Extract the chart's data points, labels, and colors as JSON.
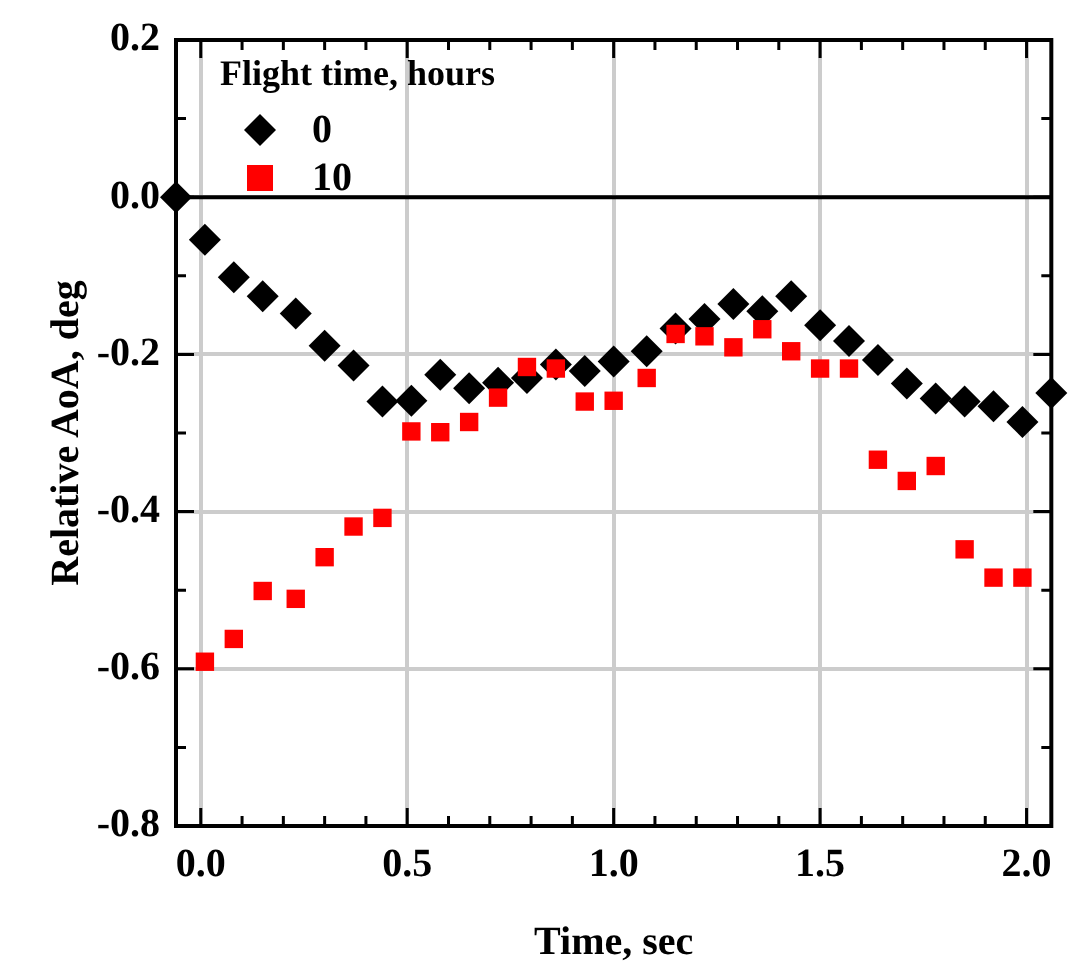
{
  "chart_data": {
    "type": "scatter",
    "xlabel": "Time, sec",
    "ylabel": "Relative AoA, deg",
    "legend_title": "Flight time, hours",
    "legend": "top left",
    "grid": true,
    "x": [
      -0.06,
      0.01,
      0.08,
      0.15,
      0.23,
      0.3,
      0.37,
      0.44,
      0.51,
      0.58,
      0.65,
      0.72,
      0.79,
      0.86,
      0.93,
      1.0,
      1.08,
      1.15,
      1.22,
      1.29,
      1.36,
      1.43,
      1.5,
      1.57,
      1.64,
      1.71,
      1.78,
      1.85,
      1.92,
      1.99,
      2.06
    ],
    "series": [
      {
        "name": "0",
        "color": "#000000",
        "marker": "diamond",
        "values": [
          0,
          -0.054,
          -0.102,
          -0.126,
          -0.148,
          -0.189,
          -0.214,
          -0.26,
          -0.259,
          -0.226,
          -0.243,
          -0.236,
          -0.23,
          -0.213,
          -0.221,
          -0.209,
          -0.196,
          -0.167,
          -0.155,
          -0.136,
          -0.145,
          -0.126,
          -0.163,
          -0.183,
          -0.207,
          -0.237,
          -0.256,
          -0.26,
          -0.266,
          -0.286,
          -0.249
        ]
      },
      {
        "name": "10",
        "color": "#ff0000",
        "marker": "square",
        "values": [
          null,
          -0.591,
          -0.562,
          -0.501,
          -0.511,
          -0.458,
          -0.419,
          -0.408,
          -0.298,
          -0.299,
          -0.286,
          -0.255,
          -0.216,
          -0.218,
          -0.26,
          -0.259,
          -0.23,
          -0.174,
          -0.177,
          -0.191,
          -0.168,
          -0.196,
          -0.218,
          -0.218,
          -0.334,
          -0.361,
          -0.342,
          -0.448,
          -0.484,
          -0.484,
          null
        ]
      }
    ],
    "xlim": [
      -0.06,
      2.06
    ],
    "xticks": [
      {
        "value": 0,
        "label": "0.0"
      },
      {
        "value": 0.1,
        "label": null
      },
      {
        "value": 0.2,
        "label": null
      },
      {
        "value": 0.3,
        "label": null
      },
      {
        "value": 0.4,
        "label": null
      },
      {
        "value": 0.5,
        "label": "0.5"
      },
      {
        "value": 0.6,
        "label": null
      },
      {
        "value": 0.7,
        "label": null
      },
      {
        "value": 0.8,
        "label": null
      },
      {
        "value": 0.9,
        "label": null
      },
      {
        "value": 1,
        "label": "1.0"
      },
      {
        "value": 1.1,
        "label": null
      },
      {
        "value": 1.2,
        "label": null
      },
      {
        "value": 1.3,
        "label": null
      },
      {
        "value": 1.4,
        "label": null
      },
      {
        "value": 1.5,
        "label": "1.5"
      },
      {
        "value": 1.6,
        "label": null
      },
      {
        "value": 1.7,
        "label": null
      },
      {
        "value": 1.8,
        "label": null
      },
      {
        "value": 1.9,
        "label": null
      },
      {
        "value": 2,
        "label": "2.0"
      }
    ],
    "ylim": [
      -0.8,
      0.2
    ],
    "yticks": [
      {
        "value": -0.8,
        "label": "-0.8"
      },
      {
        "value": -0.7,
        "label": null
      },
      {
        "value": -0.6,
        "label": "-0.6"
      },
      {
        "value": -0.5,
        "label": null
      },
      {
        "value": -0.4,
        "label": "-0.4"
      },
      {
        "value": -0.3,
        "label": null
      },
      {
        "value": -0.2,
        "label": "-0.2"
      },
      {
        "value": -0.1,
        "label": null
      },
      {
        "value": 0,
        "label": "0.0"
      },
      {
        "value": 0.1,
        "label": null
      },
      {
        "value": 0.2,
        "label": "0.2"
      }
    ],
    "ref_lines": [
      {
        "axis": "y",
        "value": 0,
        "color": "#000000"
      }
    ]
  }
}
